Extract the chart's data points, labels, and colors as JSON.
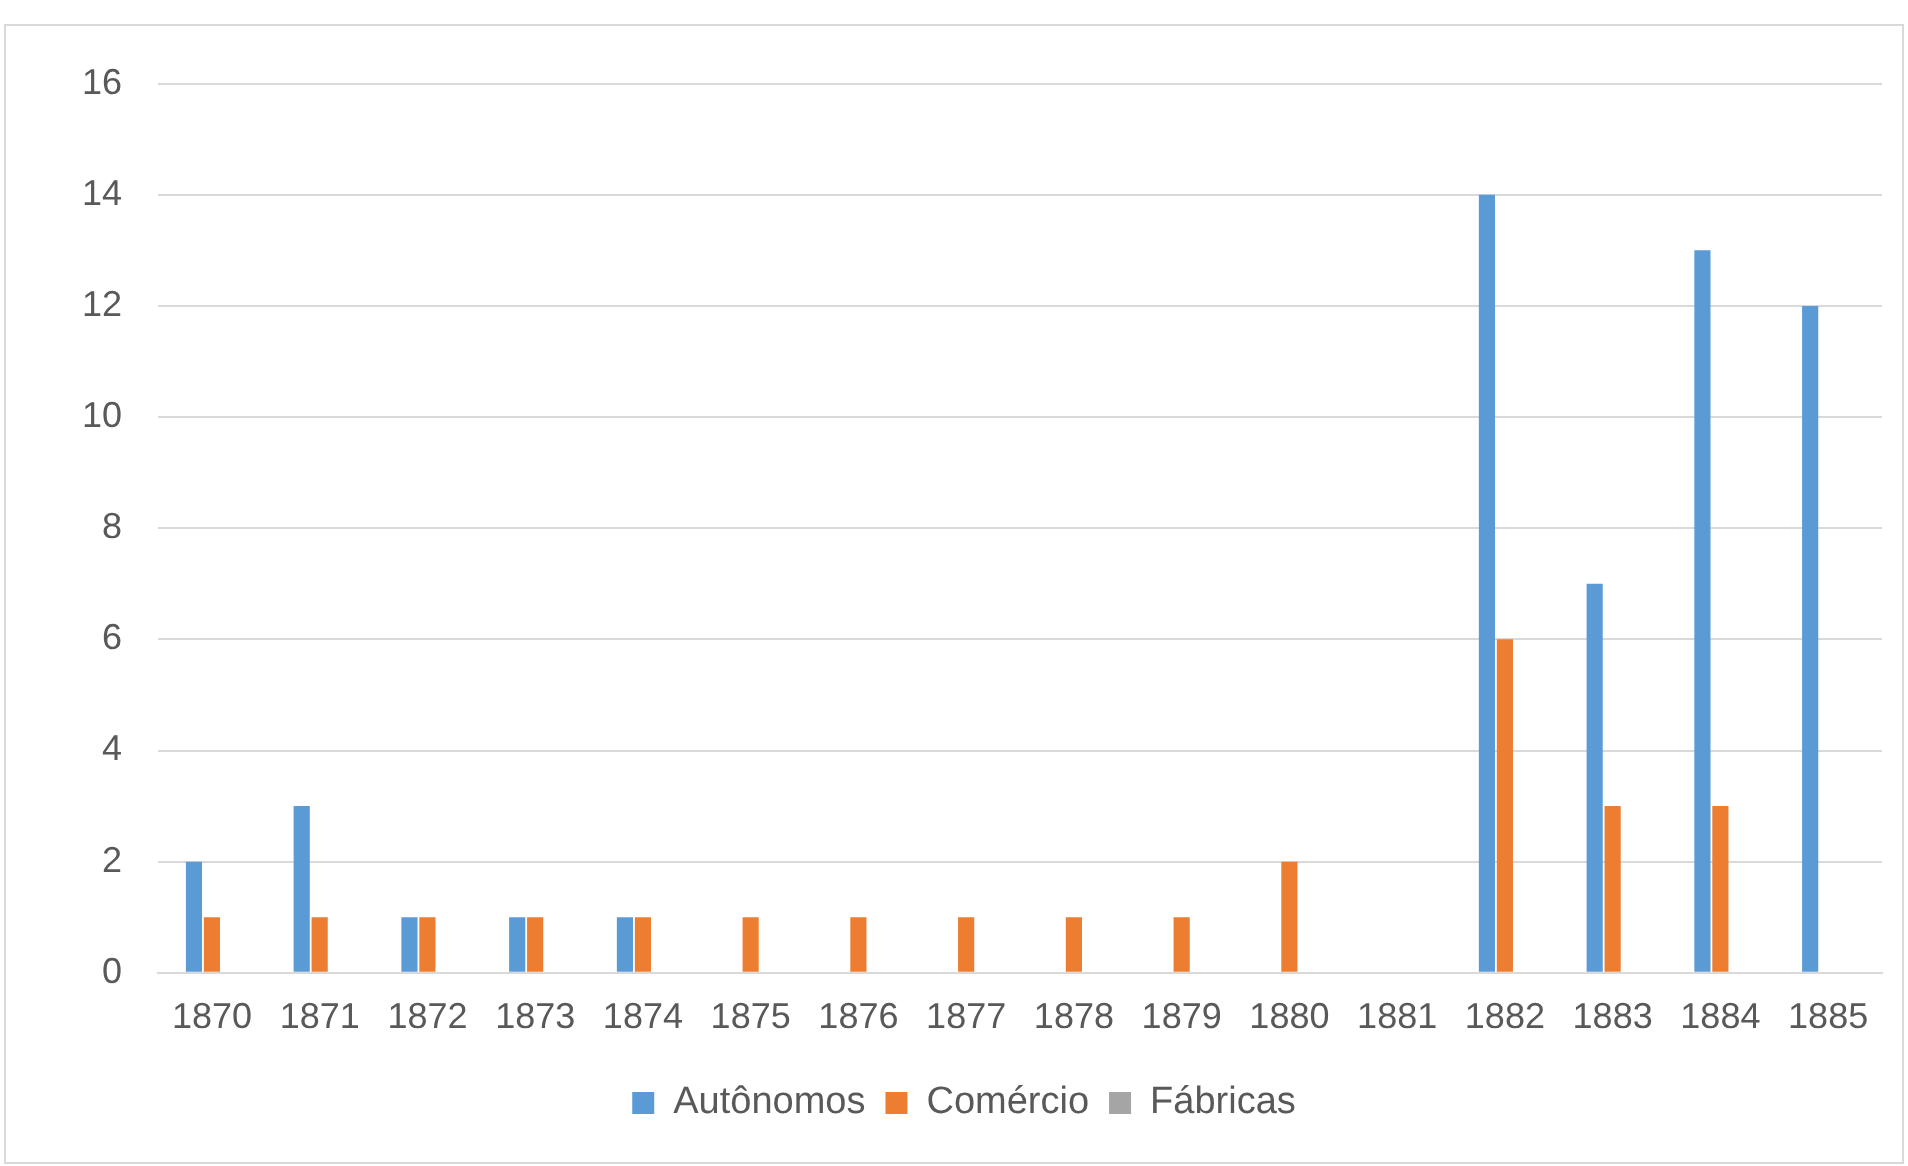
{
  "chart_data": {
    "type": "bar",
    "categories": [
      "1870",
      "1871",
      "1872",
      "1873",
      "1874",
      "1875",
      "1876",
      "1877",
      "1878",
      "1879",
      "1880",
      "1881",
      "1882",
      "1883",
      "1884",
      "1885"
    ],
    "series": [
      {
        "name": "Autônomos",
        "color": "#5b9bd5",
        "values": [
          2,
          3,
          1,
          1,
          1,
          0,
          0,
          0,
          0,
          0,
          0,
          0,
          14,
          7,
          13,
          12
        ]
      },
      {
        "name": "Comércio",
        "color": "#ed7d31",
        "values": [
          1,
          1,
          1,
          1,
          1,
          1,
          1,
          1,
          1,
          1,
          2,
          0,
          6,
          3,
          3,
          0
        ]
      },
      {
        "name": "Fábricas",
        "color": "#a5a5a5",
        "values": [
          0,
          0,
          0,
          0,
          0,
          0,
          0,
          0,
          0,
          0,
          0,
          0,
          0,
          0,
          0,
          0
        ]
      }
    ],
    "ylim": [
      0,
      16
    ],
    "yticks": [
      0,
      2,
      4,
      6,
      8,
      10,
      12,
      14,
      16
    ],
    "grid": "y",
    "legend": "bottom"
  }
}
